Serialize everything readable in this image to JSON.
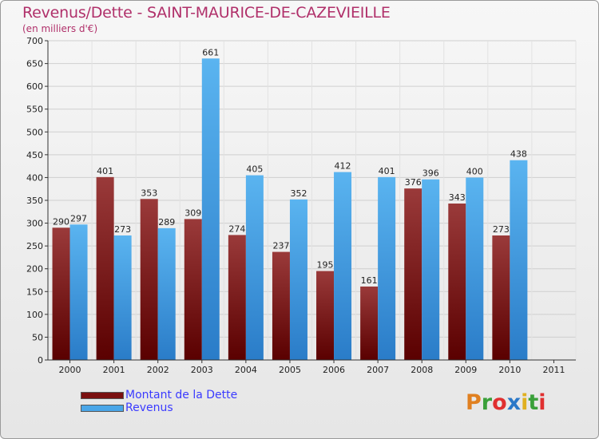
{
  "header": {
    "title": "Revenus/Dette - SAINT-MAURICE-DE-CAZEVIEILLE",
    "subtitle": "(en milliers d'€)"
  },
  "legend": {
    "items": [
      {
        "label": "Montant de la Dette",
        "color": "#7a1010"
      },
      {
        "label": "Revenus",
        "color": "#4aa6e8"
      }
    ]
  },
  "logo": {
    "text": "Proxiti",
    "colors": [
      "#e08020",
      "#3aa03a",
      "#e03030",
      "#2a78c8",
      "#e0b020",
      "#3aa03a",
      "#e03030"
    ]
  },
  "chart_data": {
    "type": "bar",
    "categories": [
      "2000",
      "2001",
      "2002",
      "2003",
      "2004",
      "2005",
      "2006",
      "2007",
      "2008",
      "2009",
      "2010",
      "2011"
    ],
    "series": [
      {
        "name": "Montant de la Dette",
        "values": [
          290,
          401,
          353,
          309,
          274,
          237,
          195,
          161,
          376,
          343,
          273,
          null
        ],
        "color_top": "#9a3a3a",
        "color_bottom": "#5a0000"
      },
      {
        "name": "Revenus",
        "values": [
          297,
          273,
          289,
          661,
          405,
          352,
          412,
          401,
          396,
          400,
          438,
          null
        ],
        "color_top": "#5ab4f0",
        "color_bottom": "#2a7cc8"
      }
    ],
    "ylim": [
      0,
      700
    ],
    "yticks": [
      0,
      50,
      100,
      150,
      200,
      250,
      300,
      350,
      400,
      450,
      500,
      550,
      600,
      650,
      700
    ],
    "grid": true,
    "legend_position": "bottom-left"
  }
}
